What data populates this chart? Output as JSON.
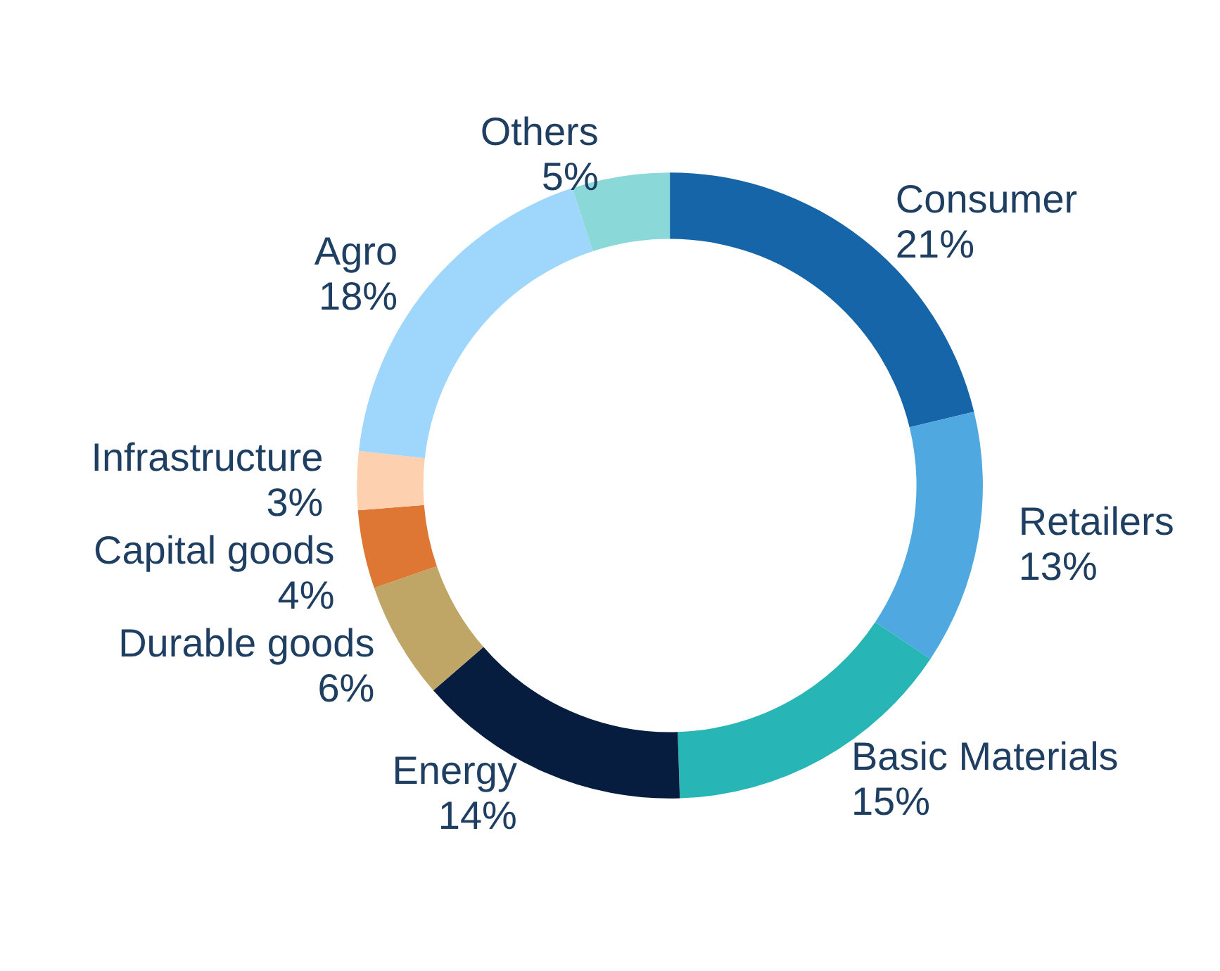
{
  "chart_data": {
    "type": "donut",
    "categories": [
      "Consumer",
      "Retailers",
      "Basic Materials",
      "Energy",
      "Durable goods",
      "Capital goods",
      "Infrastructure",
      "Agro",
      "Others"
    ],
    "values": [
      21,
      13,
      15,
      14,
      6,
      4,
      3,
      18,
      5
    ],
    "value_labels": [
      "21%",
      "13%",
      "15%",
      "14%",
      "6%",
      "4%",
      "3%",
      "18%",
      "5%"
    ],
    "colors": [
      "#1565a8",
      "#4fa8e0",
      "#27b5b5",
      "#071d3f",
      "#bfa566",
      "#dd7733",
      "#fdd0b0",
      "#9fd6fb",
      "#8ad8d8"
    ],
    "legend": false
  }
}
